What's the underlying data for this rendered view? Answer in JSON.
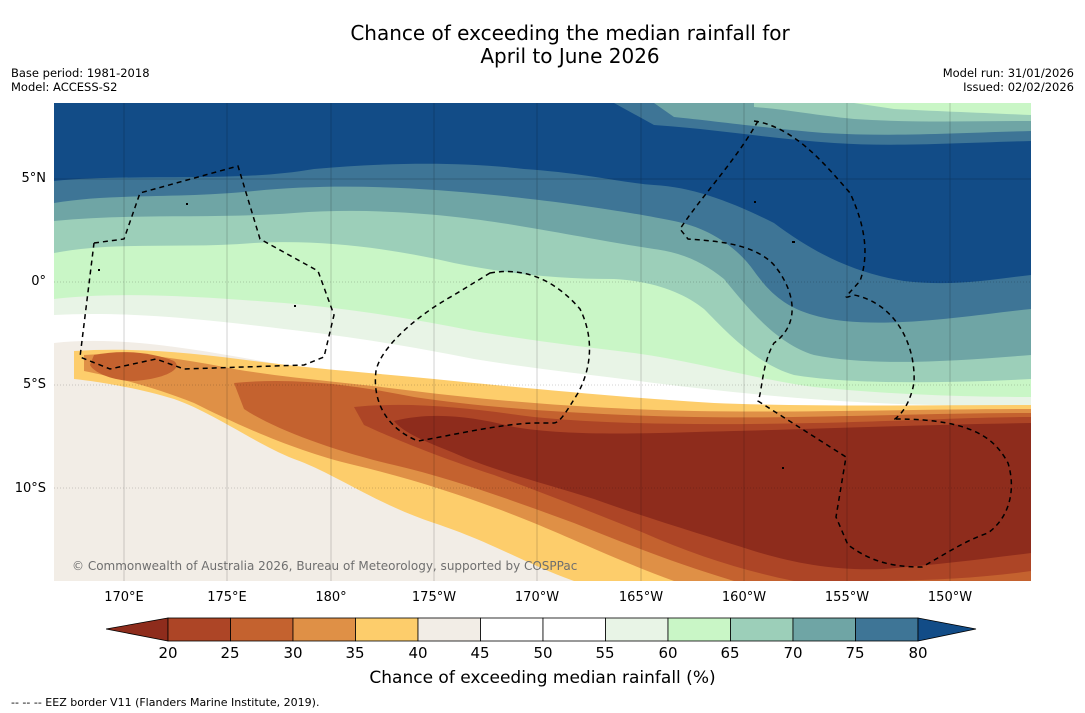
{
  "title": {
    "line1": "Chance of exceeding the median rainfall for",
    "line2": "April to June 2026"
  },
  "meta": {
    "base_period": "Base period: 1981-2018",
    "model": "Model: ACCESS-S2",
    "model_run": "Model run: 31/01/2026",
    "issued": "Issued: 02/02/2026"
  },
  "axes": {
    "lat_labels": [
      "5°N",
      "0°",
      "5°S",
      "10°S"
    ],
    "lon_labels": [
      "170°E",
      "175°E",
      "180°",
      "175°W",
      "170°W",
      "165°W",
      "160°W",
      "155°W",
      "150°W"
    ]
  },
  "copyright": "© Commonwealth of Australia 2026, Bureau of Meteorology, supported by COSPPac",
  "colorbar": {
    "ticks": [
      "20",
      "25",
      "30",
      "35",
      "40",
      "45",
      "50",
      "55",
      "60",
      "65",
      "70",
      "75",
      "80"
    ],
    "label": "Chance of exceeding median rainfall (%)",
    "colors": {
      "below20": "#8e2c1c",
      "c20_25": "#ad4526",
      "c25_30": "#c4622f",
      "c30_35": "#df9046",
      "c35_40": "#fdcd6b",
      "c40_45": "#f2ede6",
      "c45_50": "#ffffff",
      "c50_55": "#ffffff",
      "c55_60": "#e8f4e6",
      "c60_65": "#c9f6c6",
      "c65_70": "#9ccfb9",
      "c70_75": "#6fa5a5",
      "c75_80": "#3e7596",
      "above80": "#124c87"
    }
  },
  "footnote": "--  --  -- EEZ border V11 (Flanders Marine Institute, 2019)."
}
